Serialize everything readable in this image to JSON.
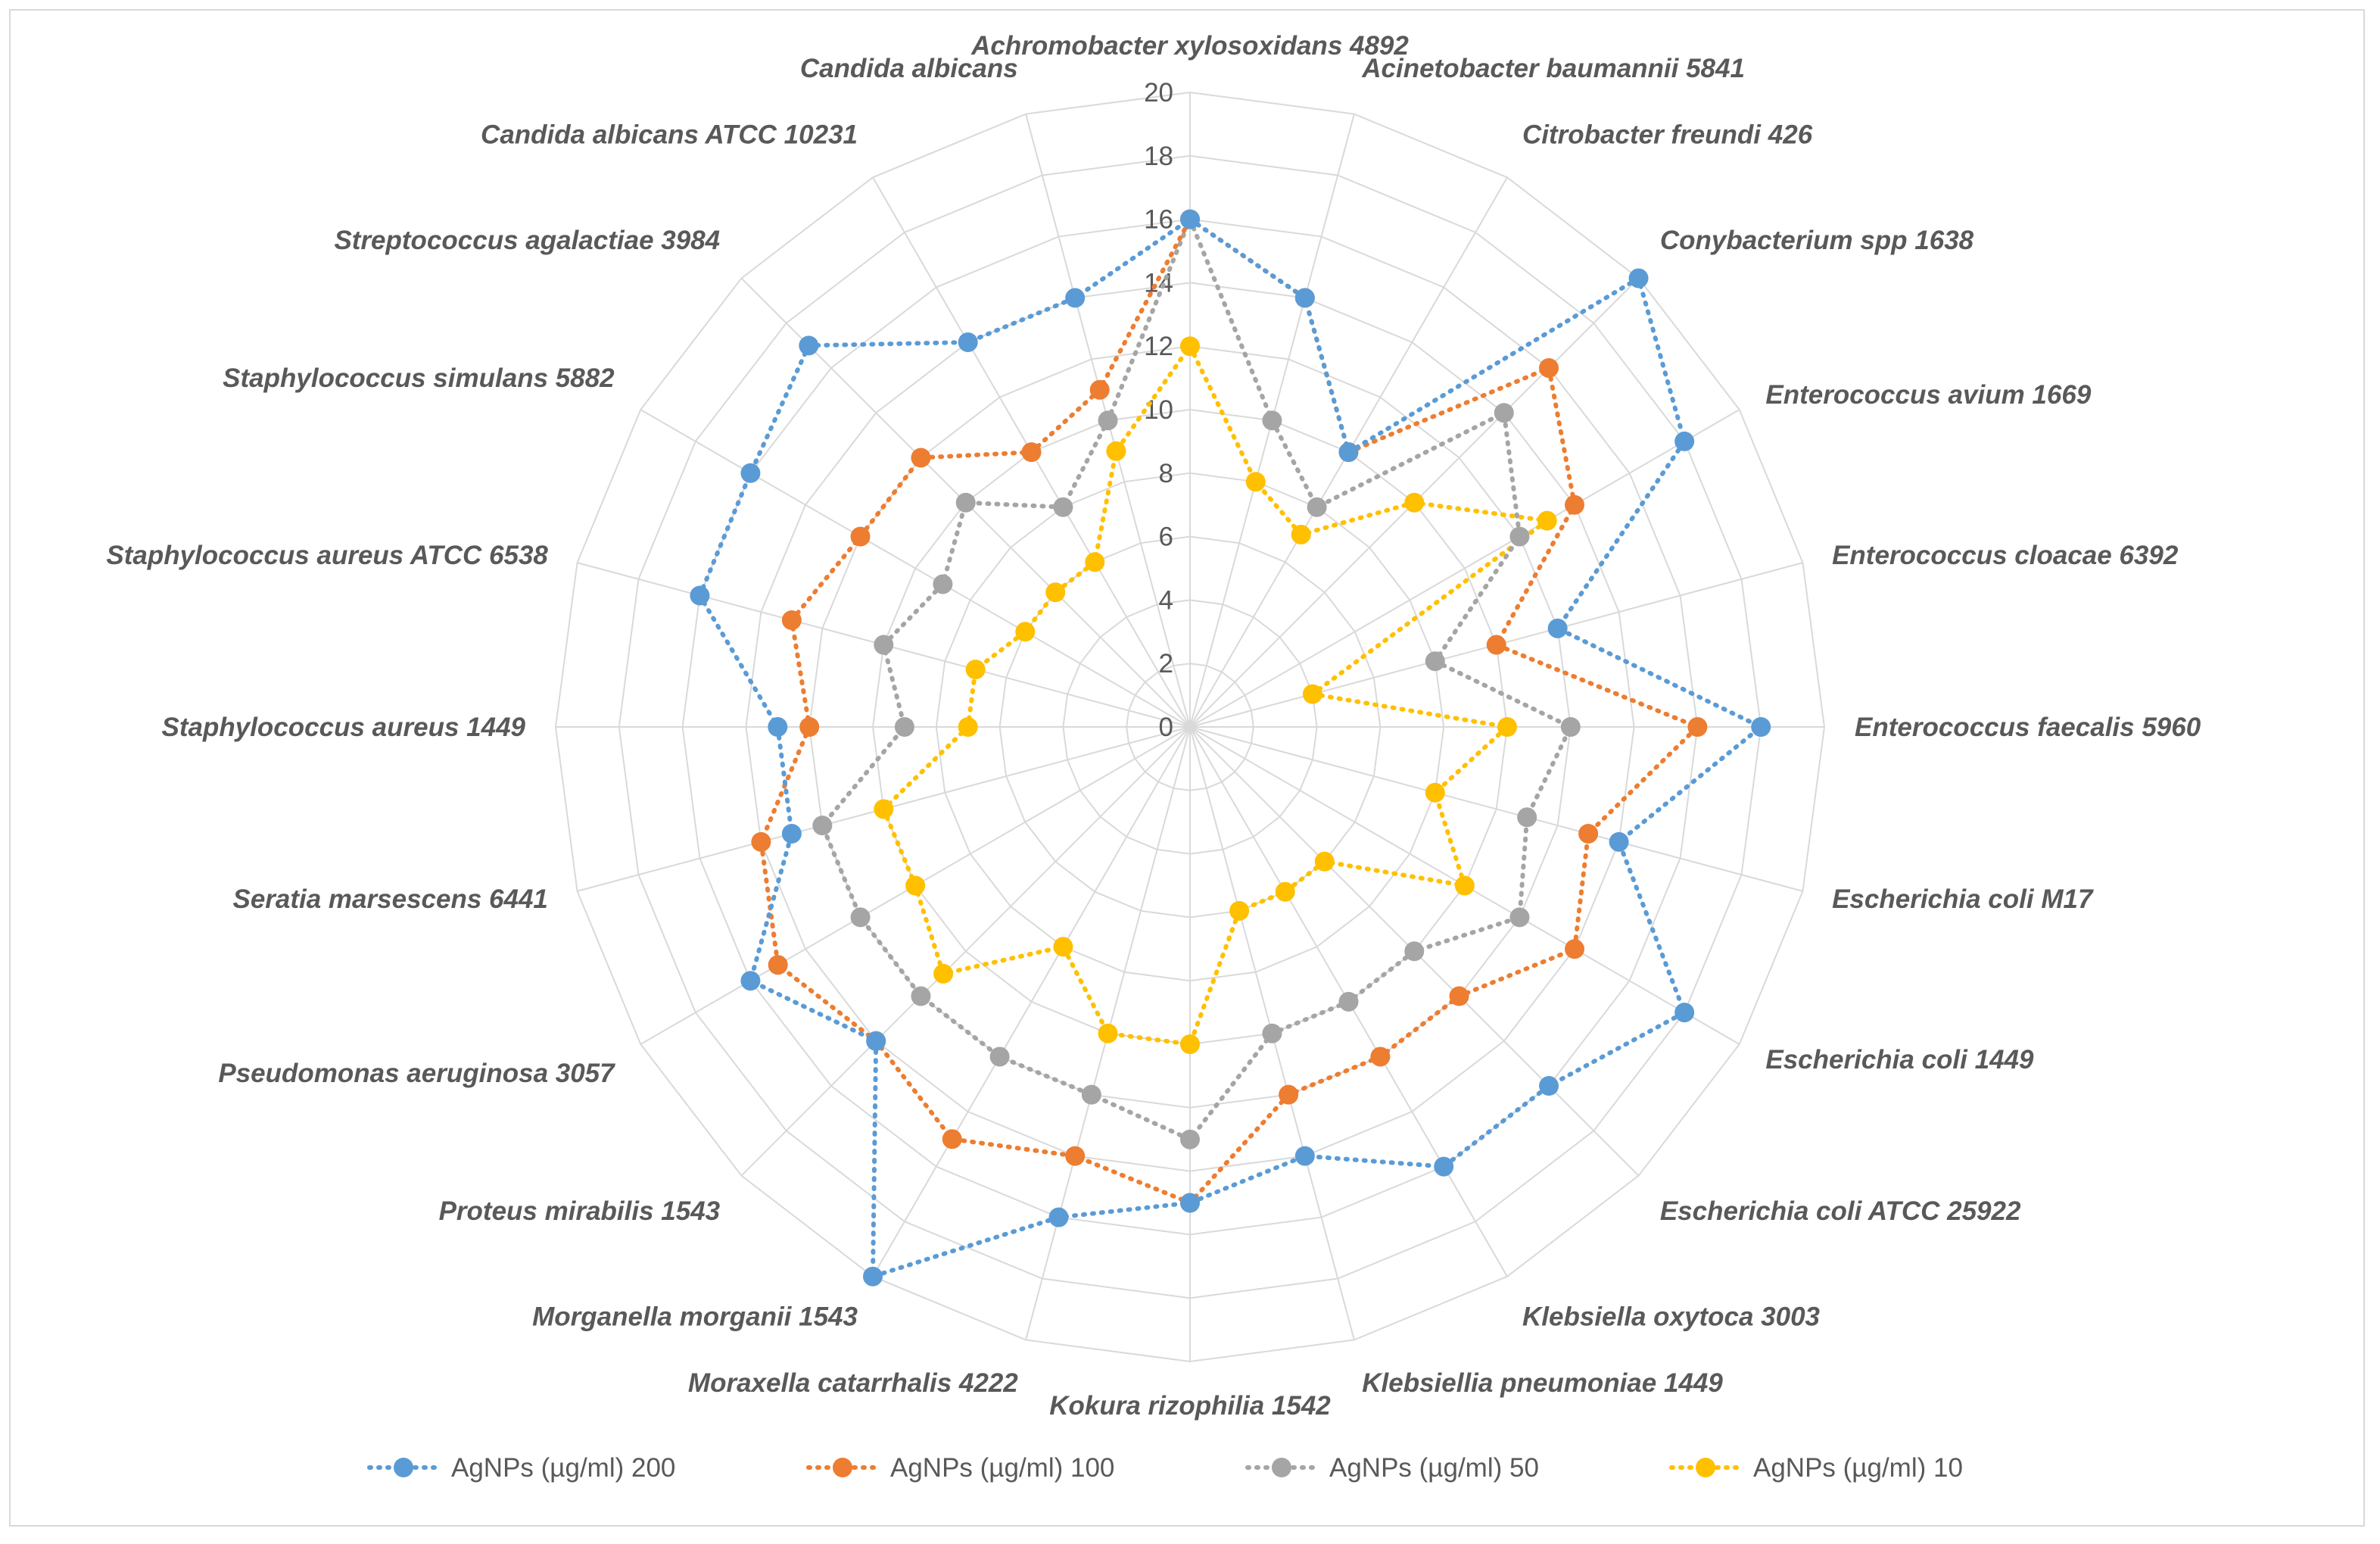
{
  "chart_data": {
    "type": "radar",
    "title": "",
    "rlim": [
      0,
      20
    ],
    "ticks": [
      0,
      2,
      4,
      6,
      8,
      10,
      12,
      14,
      16,
      18,
      20
    ],
    "tick_labels": [
      "0",
      "2",
      "4",
      "6",
      "8",
      "10",
      "12",
      "14",
      "16",
      "18",
      "20"
    ],
    "grid": true,
    "legend_position": "bottom",
    "categories": [
      "Achromobacter xylosoxidans 4892",
      "Acinetobacter baumannii 5841",
      "Citrobacter freundi 426",
      "Conybacterium spp 1638",
      "Enterococcus avium 1669",
      "Enterococcus cloacae 6392",
      "Enterococcus faecalis 5960",
      "Escherichia coli M17",
      "Escherichia coli 1449",
      "Escherichia coli ATCC 25922",
      "Klebsiella oxytoca 3003",
      "Klebsiellia pneumoniae 1449",
      "Kokura rizophilia 1542",
      "Moraxella catarrhalis 4222",
      "Morganella morganii 1543",
      "Proteus mirabilis 1543",
      "Pseudomonas aeruginosa 3057",
      "Seratia marsescens 6441",
      "Staphylococcus aureus 1449",
      "Staphylococcus aureus ATCC 6538",
      "Staphylococcus simulans 5882",
      "Streptococcus agalactiae 3984",
      "Candida albicans ATCC 10231",
      "Candida albicans"
    ],
    "series": [
      {
        "name": "AgNPs (µg/ml) 200",
        "color": "#5b9bd5",
        "values": [
          16,
          14,
          10,
          20,
          18,
          12,
          18,
          14,
          18,
          16,
          16,
          14,
          15,
          16,
          20,
          14,
          16,
          13,
          13,
          16,
          16,
          17,
          14,
          14
        ]
      },
      {
        "name": "AgNPs (µg/ml) 100",
        "color": "#ed7d31",
        "values": [
          16,
          14,
          10,
          16,
          14,
          10,
          16,
          13,
          14,
          12,
          12,
          12,
          15,
          14,
          15,
          14,
          15,
          14,
          12,
          13,
          12,
          12,
          10,
          11
        ]
      },
      {
        "name": "AgNPs (µg/ml) 50",
        "color": "#a5a5a5",
        "values": [
          16,
          10,
          8,
          14,
          12,
          8,
          12,
          11,
          12,
          10,
          10,
          10,
          13,
          12,
          12,
          12,
          12,
          12,
          9,
          10,
          9,
          10,
          8,
          10
        ]
      },
      {
        "name": "AgNPs (µg/ml) 10",
        "color": "#ffc000",
        "values": [
          12,
          8,
          7,
          10,
          13,
          4,
          10,
          8,
          10,
          6,
          6,
          6,
          10,
          10,
          8,
          11,
          10,
          10,
          7,
          7,
          6,
          6,
          6,
          9
        ]
      }
    ]
  }
}
